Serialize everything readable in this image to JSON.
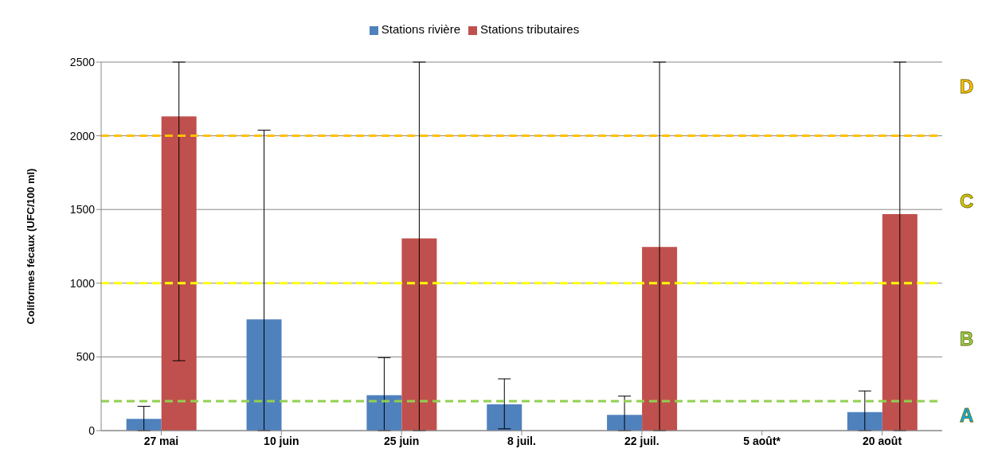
{
  "chart_data": {
    "type": "bar",
    "ylabel": "Coliformes fécaux (UFC/100 ml)",
    "categories": [
      "27 mai",
      "10 juin",
      "25 juin",
      "8 juil.",
      "22 juil.",
      "5 août*",
      "20 août"
    ],
    "series": [
      {
        "name": "Stations rivière",
        "color": "#4f81bd",
        "values": [
          80,
          755,
          240,
          178,
          106,
          null,
          126
        ],
        "errors": [
          [
            0,
            165
          ],
          [
            0,
            2038
          ],
          [
            0,
            495
          ],
          [
            12,
            351
          ],
          [
            0,
            234
          ],
          null,
          [
            0,
            269
          ]
        ]
      },
      {
        "name": "Stations tributaires",
        "color": "#c0504d",
        "values": [
          2131,
          null,
          1304,
          null,
          1246,
          null,
          1469
        ],
        "errors": [
          [
            474,
            2500
          ],
          null,
          [
            0,
            2500
          ],
          null,
          [
            0,
            2500
          ],
          null,
          [
            0,
            2500
          ]
        ]
      }
    ],
    "ylim": [
      0,
      2500
    ],
    "yticks": [
      0,
      500,
      1000,
      1500,
      2000,
      2500
    ],
    "grid": "y",
    "legend": "top",
    "ref_lines": [
      {
        "axis": "y",
        "value": 200,
        "color": "#92d050",
        "line_style": "dashed"
      },
      {
        "axis": "y",
        "value": 1000,
        "color": "#ffff00",
        "line_style": "dashed"
      },
      {
        "axis": "y",
        "value": 2000,
        "color": "#ffc000",
        "line_style": "dashed"
      }
    ],
    "annotations": [
      "A",
      "B",
      "C",
      "D"
    ]
  }
}
